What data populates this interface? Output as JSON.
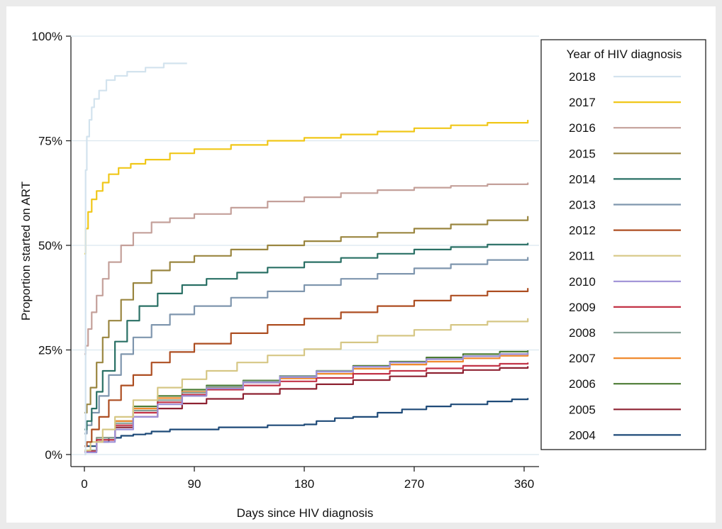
{
  "chart_data": {
    "type": "line",
    "xlabel": "Days since HIV diagnosis",
    "ylabel": "Proportion started on ART",
    "xlim": [
      0,
      365
    ],
    "ylim": [
      0,
      1
    ],
    "xticks": [
      {
        "value": 0,
        "label": "0"
      },
      {
        "value": 90,
        "label": "90"
      },
      {
        "value": 180,
        "label": "180"
      },
      {
        "value": 270,
        "label": "270"
      },
      {
        "value": 360,
        "label": "360"
      }
    ],
    "yticks": [
      {
        "value": 0,
        "label": "0%"
      },
      {
        "value": 0.25,
        "label": "25%"
      },
      {
        "value": 0.5,
        "label": "50%"
      },
      {
        "value": 0.75,
        "label": "75%"
      },
      {
        "value": 1,
        "label": "100%"
      }
    ],
    "grid": "horizontal",
    "legend": {
      "title": "Year of HIV diagnosis",
      "placement": "right"
    },
    "series": [
      {
        "name": "2018",
        "color": "#d3e3ee",
        "points": [
          [
            0,
            0
          ],
          [
            1,
            0.68
          ],
          [
            2,
            0.76
          ],
          [
            4,
            0.8
          ],
          [
            6,
            0.83
          ],
          [
            8,
            0.85
          ],
          [
            12,
            0.87
          ],
          [
            18,
            0.895
          ],
          [
            25,
            0.905
          ],
          [
            35,
            0.915
          ],
          [
            50,
            0.925
          ],
          [
            65,
            0.935
          ],
          [
            84,
            0.935
          ]
        ]
      },
      {
        "name": "2017",
        "color": "#f0c719",
        "points": [
          [
            0,
            0.48
          ],
          [
            1,
            0.54
          ],
          [
            3,
            0.58
          ],
          [
            6,
            0.61
          ],
          [
            10,
            0.63
          ],
          [
            15,
            0.65
          ],
          [
            20,
            0.67
          ],
          [
            28,
            0.685
          ],
          [
            38,
            0.695
          ],
          [
            50,
            0.705
          ],
          [
            70,
            0.72
          ],
          [
            90,
            0.73
          ],
          [
            120,
            0.74
          ],
          [
            150,
            0.75
          ],
          [
            180,
            0.757
          ],
          [
            210,
            0.765
          ],
          [
            240,
            0.772
          ],
          [
            270,
            0.78
          ],
          [
            300,
            0.787
          ],
          [
            330,
            0.793
          ],
          [
            363,
            0.8
          ]
        ]
      },
      {
        "name": "2016",
        "color": "#c4a09a",
        "points": [
          [
            0,
            0.24
          ],
          [
            1,
            0.26
          ],
          [
            3,
            0.3
          ],
          [
            6,
            0.34
          ],
          [
            10,
            0.38
          ],
          [
            15,
            0.42
          ],
          [
            20,
            0.46
          ],
          [
            30,
            0.5
          ],
          [
            40,
            0.53
          ],
          [
            55,
            0.555
          ],
          [
            70,
            0.565
          ],
          [
            90,
            0.575
          ],
          [
            120,
            0.59
          ],
          [
            150,
            0.605
          ],
          [
            180,
            0.615
          ],
          [
            210,
            0.625
          ],
          [
            240,
            0.632
          ],
          [
            270,
            0.638
          ],
          [
            300,
            0.642
          ],
          [
            330,
            0.646
          ],
          [
            363,
            0.65
          ]
        ]
      },
      {
        "name": "2015",
        "color": "#9a8640",
        "points": [
          [
            0,
            0.1
          ],
          [
            2,
            0.12
          ],
          [
            5,
            0.16
          ],
          [
            10,
            0.22
          ],
          [
            15,
            0.28
          ],
          [
            20,
            0.32
          ],
          [
            30,
            0.37
          ],
          [
            40,
            0.41
          ],
          [
            55,
            0.44
          ],
          [
            70,
            0.46
          ],
          [
            90,
            0.475
          ],
          [
            120,
            0.49
          ],
          [
            150,
            0.5
          ],
          [
            180,
            0.51
          ],
          [
            210,
            0.52
          ],
          [
            240,
            0.53
          ],
          [
            270,
            0.54
          ],
          [
            300,
            0.55
          ],
          [
            330,
            0.56
          ],
          [
            363,
            0.57
          ]
        ]
      },
      {
        "name": "2014",
        "color": "#2a7065",
        "points": [
          [
            0,
            0.06
          ],
          [
            2,
            0.08
          ],
          [
            6,
            0.11
          ],
          [
            10,
            0.15
          ],
          [
            15,
            0.2
          ],
          [
            25,
            0.27
          ],
          [
            35,
            0.32
          ],
          [
            45,
            0.355
          ],
          [
            60,
            0.385
          ],
          [
            80,
            0.405
          ],
          [
            100,
            0.42
          ],
          [
            125,
            0.435
          ],
          [
            150,
            0.447
          ],
          [
            180,
            0.46
          ],
          [
            210,
            0.47
          ],
          [
            240,
            0.48
          ],
          [
            270,
            0.49
          ],
          [
            300,
            0.496
          ],
          [
            330,
            0.502
          ],
          [
            363,
            0.506
          ]
        ]
      },
      {
        "name": "2013",
        "color": "#7f96ae",
        "points": [
          [
            0,
            0.05
          ],
          [
            2,
            0.07
          ],
          [
            6,
            0.1
          ],
          [
            12,
            0.14
          ],
          [
            20,
            0.19
          ],
          [
            30,
            0.24
          ],
          [
            40,
            0.28
          ],
          [
            55,
            0.31
          ],
          [
            70,
            0.335
          ],
          [
            90,
            0.355
          ],
          [
            120,
            0.375
          ],
          [
            150,
            0.39
          ],
          [
            180,
            0.405
          ],
          [
            210,
            0.42
          ],
          [
            240,
            0.432
          ],
          [
            270,
            0.445
          ],
          [
            300,
            0.455
          ],
          [
            330,
            0.465
          ],
          [
            363,
            0.472
          ]
        ]
      },
      {
        "name": "2012",
        "color": "#ad4e22",
        "points": [
          [
            0,
            0.02
          ],
          [
            2,
            0.03
          ],
          [
            6,
            0.06
          ],
          [
            12,
            0.09
          ],
          [
            20,
            0.13
          ],
          [
            30,
            0.165
          ],
          [
            40,
            0.19
          ],
          [
            55,
            0.22
          ],
          [
            70,
            0.245
          ],
          [
            90,
            0.265
          ],
          [
            120,
            0.29
          ],
          [
            150,
            0.31
          ],
          [
            180,
            0.325
          ],
          [
            210,
            0.34
          ],
          [
            240,
            0.355
          ],
          [
            270,
            0.368
          ],
          [
            300,
            0.38
          ],
          [
            330,
            0.39
          ],
          [
            363,
            0.398
          ]
        ]
      },
      {
        "name": "2011",
        "color": "#d6c785",
        "points": [
          [
            0,
            0.01
          ],
          [
            5,
            0.03
          ],
          [
            15,
            0.06
          ],
          [
            25,
            0.09
          ],
          [
            40,
            0.13
          ],
          [
            60,
            0.16
          ],
          [
            80,
            0.18
          ],
          [
            100,
            0.2
          ],
          [
            125,
            0.22
          ],
          [
            150,
            0.237
          ],
          [
            180,
            0.252
          ],
          [
            210,
            0.268
          ],
          [
            240,
            0.284
          ],
          [
            270,
            0.298
          ],
          [
            300,
            0.31
          ],
          [
            330,
            0.318
          ],
          [
            363,
            0.326
          ]
        ]
      },
      {
        "name": "2010",
        "color": "#9e90d6",
        "points": [
          [
            0,
            0.005
          ],
          [
            10,
            0.03
          ],
          [
            25,
            0.06
          ],
          [
            40,
            0.09
          ],
          [
            60,
            0.12
          ],
          [
            80,
            0.14
          ],
          [
            100,
            0.158
          ],
          [
            130,
            0.172
          ],
          [
            160,
            0.185
          ],
          [
            190,
            0.198
          ],
          [
            220,
            0.21
          ],
          [
            250,
            0.22
          ],
          [
            280,
            0.228
          ],
          [
            310,
            0.235
          ],
          [
            340,
            0.24
          ],
          [
            363,
            0.243
          ]
        ]
      },
      {
        "name": "2009",
        "color": "#c23347",
        "points": [
          [
            0,
            0.008
          ],
          [
            10,
            0.035
          ],
          [
            25,
            0.07
          ],
          [
            40,
            0.1
          ],
          [
            60,
            0.125
          ],
          [
            80,
            0.143
          ],
          [
            100,
            0.155
          ],
          [
            130,
            0.165
          ],
          [
            160,
            0.175
          ],
          [
            190,
            0.183
          ],
          [
            220,
            0.193
          ],
          [
            250,
            0.2
          ],
          [
            280,
            0.206
          ],
          [
            310,
            0.212
          ],
          [
            340,
            0.217
          ],
          [
            363,
            0.22
          ]
        ]
      },
      {
        "name": "2008",
        "color": "#86a197",
        "points": [
          [
            0,
            0.01
          ],
          [
            10,
            0.04
          ],
          [
            25,
            0.075
          ],
          [
            40,
            0.105
          ],
          [
            60,
            0.13
          ],
          [
            80,
            0.148
          ],
          [
            100,
            0.162
          ],
          [
            130,
            0.175
          ],
          [
            160,
            0.188
          ],
          [
            190,
            0.2
          ],
          [
            220,
            0.21
          ],
          [
            250,
            0.22
          ],
          [
            280,
            0.228
          ],
          [
            310,
            0.235
          ],
          [
            340,
            0.24
          ],
          [
            363,
            0.245
          ]
        ]
      },
      {
        "name": "2007",
        "color": "#f08a2e",
        "points": [
          [
            0,
            0.01
          ],
          [
            10,
            0.04
          ],
          [
            25,
            0.08
          ],
          [
            40,
            0.11
          ],
          [
            60,
            0.135
          ],
          [
            80,
            0.15
          ],
          [
            100,
            0.16
          ],
          [
            130,
            0.172
          ],
          [
            160,
            0.182
          ],
          [
            190,
            0.193
          ],
          [
            220,
            0.205
          ],
          [
            250,
            0.215
          ],
          [
            280,
            0.222
          ],
          [
            310,
            0.23
          ],
          [
            340,
            0.236
          ],
          [
            363,
            0.24
          ]
        ]
      },
      {
        "name": "2006",
        "color": "#4c7b33",
        "points": [
          [
            0,
            0.01
          ],
          [
            10,
            0.04
          ],
          [
            25,
            0.08
          ],
          [
            40,
            0.115
          ],
          [
            60,
            0.14
          ],
          [
            80,
            0.155
          ],
          [
            100,
            0.165
          ],
          [
            130,
            0.177
          ],
          [
            160,
            0.188
          ],
          [
            190,
            0.2
          ],
          [
            220,
            0.212
          ],
          [
            250,
            0.222
          ],
          [
            280,
            0.232
          ],
          [
            310,
            0.24
          ],
          [
            340,
            0.246
          ],
          [
            363,
            0.249
          ]
        ]
      },
      {
        "name": "2005",
        "color": "#8e2232",
        "points": [
          [
            0,
            0.01
          ],
          [
            10,
            0.035
          ],
          [
            25,
            0.065
          ],
          [
            40,
            0.09
          ],
          [
            60,
            0.11
          ],
          [
            80,
            0.122
          ],
          [
            100,
            0.133
          ],
          [
            130,
            0.145
          ],
          [
            160,
            0.157
          ],
          [
            190,
            0.168
          ],
          [
            220,
            0.178
          ],
          [
            250,
            0.187
          ],
          [
            280,
            0.195
          ],
          [
            310,
            0.202
          ],
          [
            340,
            0.207
          ],
          [
            363,
            0.211
          ]
        ]
      },
      {
        "name": "2004",
        "color": "#1e4a78",
        "points": [
          [
            0,
            0.02
          ],
          [
            10,
            0.03
          ],
          [
            20,
            0.04
          ],
          [
            30,
            0.045
          ],
          [
            40,
            0.048
          ],
          [
            50,
            0.05
          ],
          [
            55,
            0.055
          ],
          [
            70,
            0.06
          ],
          [
            90,
            0.06
          ],
          [
            110,
            0.065
          ],
          [
            150,
            0.07
          ],
          [
            170,
            0.07
          ],
          [
            180,
            0.072
          ],
          [
            190,
            0.08
          ],
          [
            205,
            0.087
          ],
          [
            220,
            0.09
          ],
          [
            240,
            0.1
          ],
          [
            260,
            0.108
          ],
          [
            280,
            0.115
          ],
          [
            300,
            0.12
          ],
          [
            330,
            0.127
          ],
          [
            350,
            0.132
          ],
          [
            363,
            0.135
          ]
        ]
      }
    ]
  }
}
